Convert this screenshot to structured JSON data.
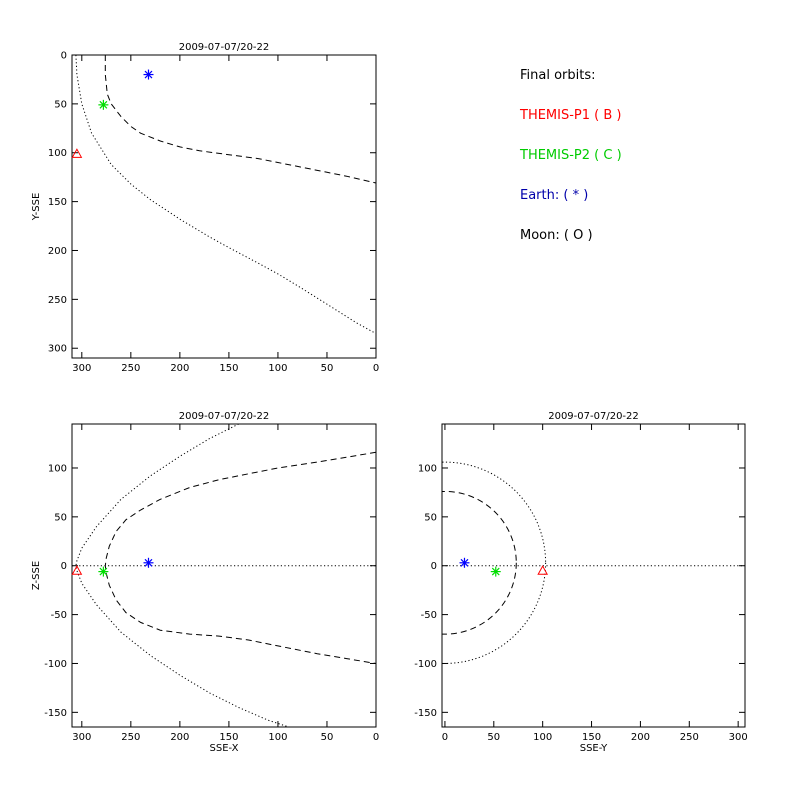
{
  "chart_data": [
    {
      "type": "scatter",
      "title": "2009-07-07/20-22",
      "xlabel": "",
      "ylabel": "Y-SSE",
      "xlim": [
        310,
        0
      ],
      "ylim": [
        310,
        0
      ],
      "xticks": [
        300,
        250,
        200,
        150,
        100,
        50,
        0
      ],
      "yticks": [
        0,
        50,
        100,
        150,
        200,
        250,
        300
      ],
      "points": [
        {
          "name": "THEMIS-P1",
          "x": 305,
          "y": 101,
          "marker": "triangle",
          "color": "#ff0000"
        },
        {
          "name": "THEMIS-P2",
          "x": 278,
          "y": 51,
          "marker": "asterisk",
          "color": "#00dd00"
        },
        {
          "name": "Earth",
          "x": 232,
          "y": 20,
          "marker": "asterisk",
          "color": "#0000ff"
        }
      ],
      "curves": [
        {
          "style": "dashed",
          "x": [
            276,
            276,
            274,
            270,
            260,
            250,
            240,
            220,
            200,
            180,
            150,
            120,
            100,
            80,
            50,
            30,
            0
          ],
          "y": [
            0,
            20,
            40,
            50,
            63,
            73,
            80,
            88,
            94,
            98,
            102,
            106,
            110,
            114,
            120,
            124,
            131
          ]
        },
        {
          "style": "dotted",
          "x": [
            306,
            305,
            300,
            290,
            270,
            250,
            230,
            200,
            170,
            150,
            120,
            100,
            80,
            50,
            20,
            0
          ],
          "y": [
            0,
            20,
            50,
            80,
            112,
            132,
            148,
            168,
            186,
            197,
            213,
            224,
            236,
            255,
            274,
            285
          ]
        }
      ]
    },
    {
      "type": "scatter",
      "title": "2009-07-07/20-22",
      "xlabel": "SSE-X",
      "ylabel": "Z-SSE",
      "xlim": [
        310,
        0
      ],
      "ylim": [
        -165,
        145
      ],
      "xticks": [
        300,
        250,
        200,
        150,
        100,
        50,
        0
      ],
      "yticks": [
        100,
        50,
        0,
        -50,
        -100,
        -150
      ],
      "points": [
        {
          "name": "THEMIS-P1",
          "x": 305,
          "y": -5,
          "marker": "triangle",
          "color": "#ff0000"
        },
        {
          "name": "THEMIS-P2",
          "x": 278,
          "y": -6,
          "marker": "asterisk",
          "color": "#00dd00"
        },
        {
          "name": "Earth",
          "x": 232,
          "y": 3,
          "marker": "asterisk",
          "color": "#0000ff"
        }
      ],
      "curves": [
        {
          "style": "dashed",
          "x": [
            0,
            30,
            60,
            100,
            130,
            160,
            190,
            220,
            240,
            255,
            265,
            272,
            275,
            276,
            275,
            272,
            265,
            255,
            240,
            220,
            190,
            160,
            130,
            100,
            60,
            30,
            0
          ],
          "y": [
            116,
            111,
            106,
            100,
            94,
            88,
            80,
            68,
            57,
            47,
            35,
            20,
            8,
            0,
            -8,
            -20,
            -35,
            -48,
            -58,
            -66,
            -70,
            -72,
            -76,
            -82,
            -90,
            -95,
            -100
          ]
        },
        {
          "style": "dotted",
          "x": [
            140,
            170,
            200,
            230,
            260,
            285,
            300,
            305,
            306,
            305,
            300,
            285,
            260,
            230,
            200,
            170,
            140,
            110,
            80
          ],
          "y": [
            145,
            130,
            112,
            92,
            68,
            40,
            18,
            5,
            0,
            -5,
            -18,
            -40,
            -68,
            -92,
            -112,
            -130,
            -145,
            -158,
            -168
          ]
        },
        {
          "style": "dotted",
          "x": [
            310,
            0
          ],
          "y": [
            0,
            0
          ]
        }
      ]
    },
    {
      "type": "scatter",
      "title": "2009-07-07/20-22",
      "xlabel": "SSE-Y",
      "ylabel": "",
      "xlim": [
        -3,
        307
      ],
      "ylim": [
        -165,
        145
      ],
      "xticks": [
        0,
        50,
        100,
        150,
        200,
        250,
        300
      ],
      "yticks": [
        100,
        50,
        0,
        -50,
        -100,
        -150
      ],
      "points": [
        {
          "name": "THEMIS-P1",
          "x": 100,
          "y": -5,
          "marker": "triangle",
          "color": "#ff0000"
        },
        {
          "name": "THEMIS-P2",
          "x": 52,
          "y": -6,
          "marker": "asterisk",
          "color": "#00dd00"
        },
        {
          "name": "Earth",
          "x": 20,
          "y": 3,
          "marker": "asterisk",
          "color": "#0000ff"
        }
      ],
      "curves": [
        {
          "style": "dashed",
          "circle": true,
          "cx": 0,
          "cy": 3,
          "r": 73
        },
        {
          "style": "dotted",
          "circle": true,
          "cx": 0,
          "cy": 3,
          "r": 103
        },
        {
          "style": "dotted",
          "x": [
            -3,
            307
          ],
          "y": [
            0,
            0
          ]
        }
      ]
    }
  ],
  "legend": {
    "title": "Final orbits:",
    "items": [
      {
        "label": "THEMIS-P1 ( B )",
        "color": "#ff0000"
      },
      {
        "label": "THEMIS-P2 ( C )",
        "color": "#00cc00"
      },
      {
        "label": "Earth: ( * )",
        "color": "#0000aa"
      },
      {
        "label": "Moon: ( O )",
        "color": "#000000"
      }
    ]
  }
}
